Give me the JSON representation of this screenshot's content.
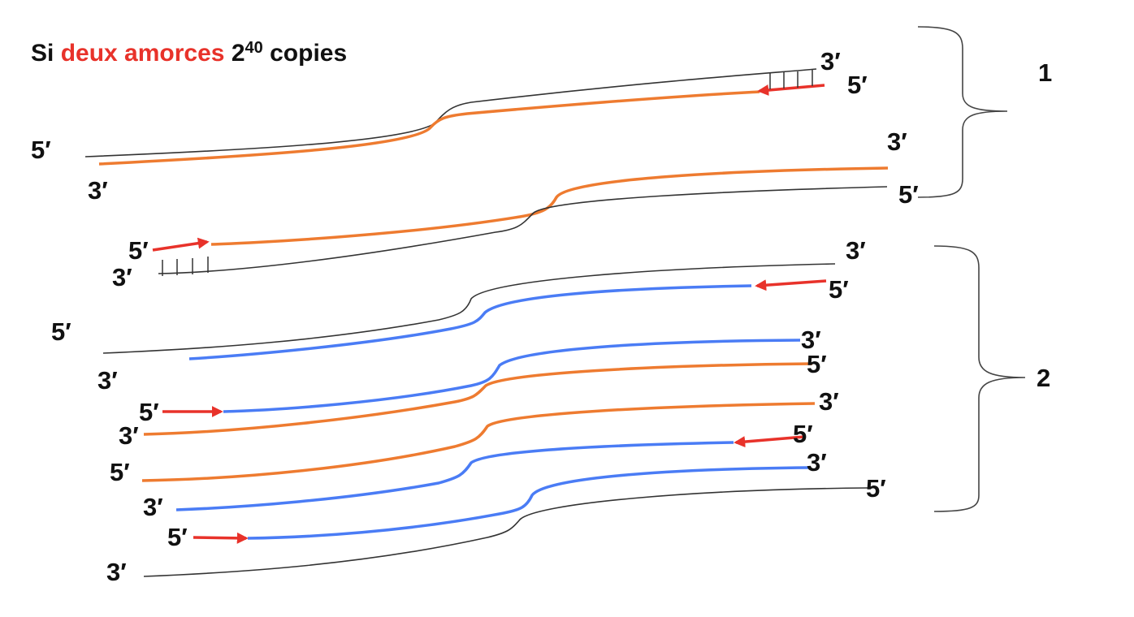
{
  "title": {
    "prefix": "Si",
    "highlight": "deux amorces",
    "base": "2",
    "exponent": "40",
    "suffix": "copies"
  },
  "labels": [
    "3′",
    "5′",
    "5′",
    "3′",
    "3′",
    "5′",
    "5′",
    "3′",
    "3′",
    "5′",
    "5′",
    "3′",
    "5′",
    "3′",
    "5′",
    "3′",
    "3′",
    "5′",
    "5′",
    "3′",
    "3′",
    "5′",
    "5′",
    "3′"
  ],
  "groups": [
    "1",
    "2"
  ]
}
